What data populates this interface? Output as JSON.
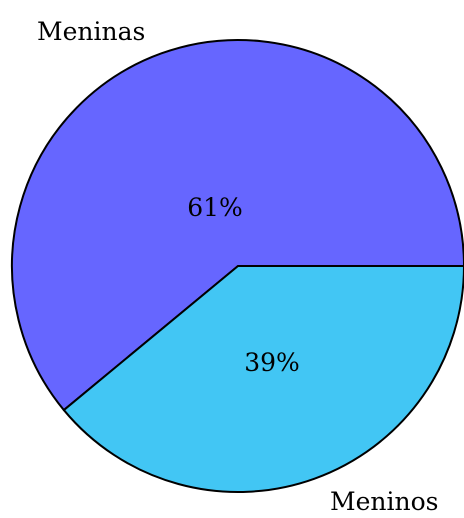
{
  "chart_data": {
    "type": "pie",
    "slices": [
      {
        "label": "Meninas",
        "value": 61,
        "pct_label": "61%",
        "color": "#6666ff"
      },
      {
        "label": "Meninos",
        "value": 39,
        "pct_label": "39%",
        "color": "#42c6f4"
      }
    ],
    "stroke_color": "#000000"
  }
}
